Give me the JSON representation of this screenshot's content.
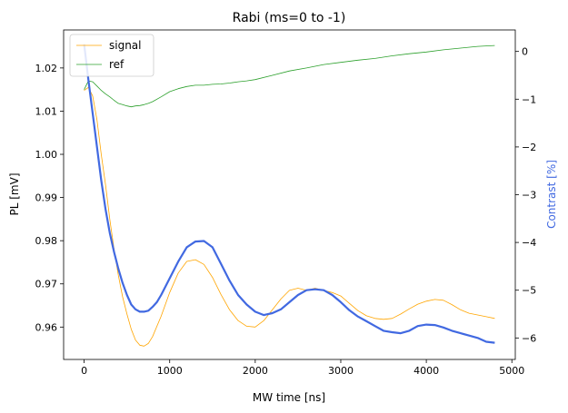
{
  "chart_data": {
    "type": "line",
    "title": "Rabi (ms=0 to -1)",
    "xlabel": "MW time [ns]",
    "ylabel": "PL [mV]",
    "y2label": "Contrast [%]",
    "xlim": [
      -240,
      5040
    ],
    "ylim": [
      0.9525,
      1.0288
    ],
    "y2lim": [
      -6.45,
      0.45
    ],
    "xticks": [
      0,
      1000,
      2000,
      3000,
      4000,
      5000
    ],
    "xtick_labels": [
      "0",
      "1000",
      "2000",
      "3000",
      "4000",
      "5000"
    ],
    "yticks": [
      0.96,
      0.97,
      0.98,
      0.99,
      1.0,
      1.01,
      1.02
    ],
    "ytick_labels": [
      "0.96",
      "0.97",
      "0.98",
      "0.99",
      "1.00",
      "1.01",
      "1.02"
    ],
    "y2ticks": [
      0,
      -1,
      -2,
      -3,
      -4,
      -5,
      -6
    ],
    "y2tick_labels": [
      "0",
      "−1",
      "−2",
      "−3",
      "−4",
      "−5",
      "−6"
    ],
    "legend_position": "top-left",
    "grid": false,
    "series": [
      {
        "name": "signal",
        "color": "#ffa500",
        "axis": "left",
        "x": [
          0,
          50,
          100,
          150,
          200,
          250,
          300,
          350,
          400,
          450,
          500,
          550,
          600,
          650,
          700,
          750,
          800,
          900,
          1000,
          1100,
          1200,
          1300,
          1400,
          1500,
          1600,
          1700,
          1800,
          1900,
          2000,
          2100,
          2200,
          2300,
          2400,
          2500,
          2600,
          2700,
          2800,
          2900,
          3000,
          3100,
          3200,
          3300,
          3400,
          3500,
          3600,
          3700,
          3800,
          3900,
          4000,
          4100,
          4200,
          4300,
          4400,
          4500,
          4600,
          4700,
          4800
        ],
        "y": [
          1.0148,
          1.0155,
          1.0135,
          1.008,
          1.0,
          0.993,
          0.985,
          0.978,
          0.972,
          0.967,
          0.963,
          0.9595,
          0.957,
          0.9558,
          0.9556,
          0.9562,
          0.9578,
          0.9625,
          0.968,
          0.9725,
          0.9752,
          0.9756,
          0.9745,
          0.9715,
          0.9675,
          0.964,
          0.9615,
          0.9602,
          0.96,
          0.9615,
          0.964,
          0.9665,
          0.9685,
          0.969,
          0.9685,
          0.969,
          0.9685,
          0.968,
          0.9672,
          0.9655,
          0.9638,
          0.9626,
          0.962,
          0.9618,
          0.962,
          0.963,
          0.9642,
          0.9653,
          0.966,
          0.9664,
          0.9662,
          0.9652,
          0.964,
          0.9632,
          0.9628,
          0.9624,
          0.962
        ]
      },
      {
        "name": "ref",
        "color": "#2ca02c",
        "axis": "left",
        "x": [
          0,
          50,
          100,
          150,
          200,
          250,
          300,
          350,
          400,
          450,
          500,
          550,
          600,
          650,
          700,
          750,
          800,
          900,
          1000,
          1100,
          1200,
          1300,
          1400,
          1500,
          1600,
          1700,
          1800,
          1900,
          2000,
          2200,
          2400,
          2600,
          2800,
          3000,
          3200,
          3400,
          3600,
          3800,
          4000,
          4200,
          4400,
          4600,
          4800
        ],
        "y": [
          1.015,
          1.017,
          1.0168,
          1.0158,
          1.0148,
          1.014,
          1.0133,
          1.0125,
          1.0118,
          1.0115,
          1.0112,
          1.011,
          1.0112,
          1.0113,
          1.0115,
          1.0118,
          1.0122,
          1.0133,
          1.0145,
          1.0152,
          1.0157,
          1.016,
          1.016,
          1.0162,
          1.0163,
          1.0165,
          1.0168,
          1.017,
          1.0173,
          1.0183,
          1.0193,
          1.02,
          1.0208,
          1.0213,
          1.0218,
          1.0222,
          1.0228,
          1.0233,
          1.0237,
          1.0242,
          1.0246,
          1.025,
          1.0252
        ]
      },
      {
        "name": "",
        "color": "#4169e1",
        "axis": "right",
        "x": [
          0,
          50,
          100,
          150,
          200,
          250,
          300,
          350,
          400,
          450,
          500,
          550,
          600,
          650,
          700,
          750,
          800,
          850,
          900,
          1000,
          1100,
          1200,
          1300,
          1400,
          1500,
          1600,
          1700,
          1800,
          1900,
          2000,
          2100,
          2200,
          2300,
          2400,
          2500,
          2600,
          2700,
          2800,
          2900,
          3000,
          3100,
          3200,
          3300,
          3400,
          3500,
          3600,
          3700,
          3800,
          3900,
          4000,
          4100,
          4200,
          4300,
          4400,
          4500,
          4600,
          4700,
          4800
        ],
        "y": [
          0.15,
          -0.6,
          -1.3,
          -2.0,
          -2.7,
          -3.3,
          -3.8,
          -4.2,
          -4.55,
          -4.85,
          -5.1,
          -5.3,
          -5.4,
          -5.45,
          -5.45,
          -5.43,
          -5.35,
          -5.25,
          -5.1,
          -4.75,
          -4.4,
          -4.1,
          -3.98,
          -3.97,
          -4.1,
          -4.45,
          -4.8,
          -5.1,
          -5.3,
          -5.45,
          -5.52,
          -5.48,
          -5.4,
          -5.25,
          -5.1,
          -5.0,
          -4.98,
          -5.0,
          -5.1,
          -5.25,
          -5.42,
          -5.55,
          -5.65,
          -5.75,
          -5.85,
          -5.88,
          -5.9,
          -5.85,
          -5.75,
          -5.72,
          -5.73,
          -5.78,
          -5.85,
          -5.9,
          -5.95,
          -6.0,
          -6.08,
          -6.1
        ]
      }
    ]
  }
}
